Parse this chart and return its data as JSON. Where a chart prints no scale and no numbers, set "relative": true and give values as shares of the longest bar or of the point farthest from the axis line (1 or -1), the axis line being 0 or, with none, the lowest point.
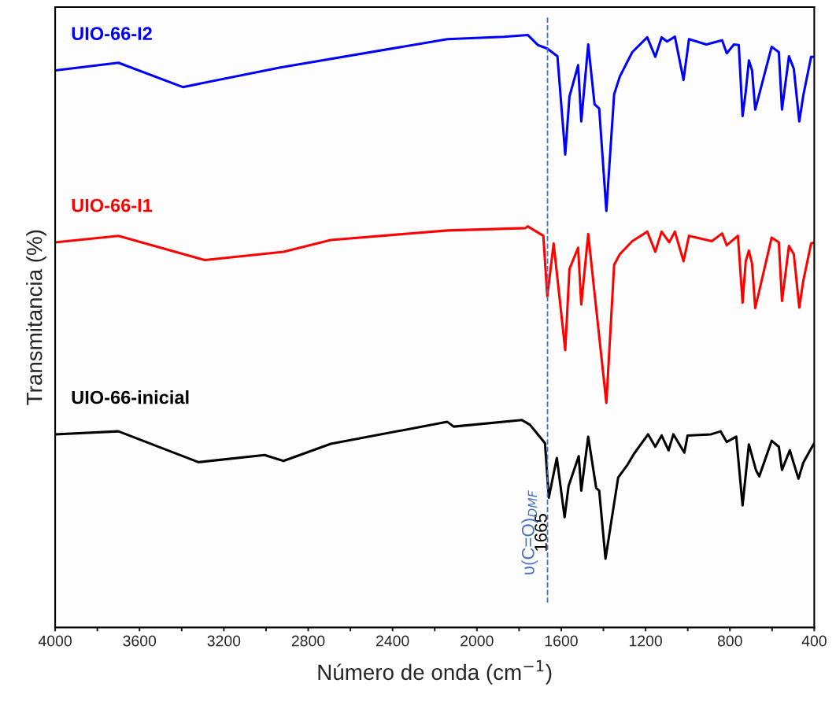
{
  "chart_data": {
    "type": "line",
    "relative": true,
    "xlabel": "Número de onda (cm$^{−1}$)",
    "ylabel": "Transmitancia (%)",
    "xlim": [
      4000,
      400
    ],
    "xticks": [
      4000,
      {
        "value": 3800,
        "label": null
      },
      3600,
      {
        "value": 3400,
        "label": null
      },
      3200,
      {
        "value": 3000,
        "label": null
      },
      2800,
      {
        "value": 2600,
        "label": null
      },
      2400,
      {
        "value": 2200,
        "label": null
      },
      2000,
      {
        "value": 1800,
        "label": null
      },
      1600,
      {
        "value": 1400,
        "label": null
      },
      1200,
      {
        "value": 1000,
        "label": null
      },
      800,
      {
        "value": 600,
        "label": null
      },
      400
    ],
    "legend": false,
    "grid": false,
    "line_style": "solid",
    "marker": "none",
    "ref_lines": [
      {
        "axis": "x",
        "value": 1665,
        "label": "1665",
        "color": "#4472c4",
        "line_style": "dashed"
      }
    ],
    "annotations": [
      "υ(C=O)$_{DMF}$"
    ],
    "series": [
      {
        "name": "UIO-66-I2",
        "color": "#0000ff",
        "x": [
          4000,
          3700,
          3395,
          2932,
          2140,
          1871,
          1759,
          1711,
          1666,
          1618,
          1581,
          1561,
          1520,
          1505,
          1472,
          1442,
          1420,
          1386,
          1349,
          1322,
          1263,
          1192,
          1154,
          1124,
          1098,
          1061,
          1020,
          994,
          912,
          837,
          815,
          781,
          758,
          740,
          725,
          710,
          695,
          680,
          602,
          568,
          553,
          520,
          497,
          471,
          452,
          415,
          400
        ],
        "values": [
          0.94,
          0.953,
          0.912,
          0.945,
          0.993,
          0.997,
          1.0,
          0.983,
          0.977,
          0.964,
          0.798,
          0.896,
          0.949,
          0.854,
          0.984,
          0.883,
          0.876,
          0.703,
          0.9,
          0.93,
          0.971,
          0.996,
          0.963,
          0.996,
          0.989,
          0.997,
          0.924,
          0.993,
          0.984,
          0.991,
          0.969,
          0.984,
          0.983,
          0.863,
          0.904,
          0.957,
          0.94,
          0.874,
          0.98,
          0.971,
          0.874,
          0.964,
          0.943,
          0.854,
          0.898,
          0.963,
          0.963
        ]
      },
      {
        "name": "UIO-66-I1",
        "color": "#ff0000",
        "x": [
          4000,
          3700,
          3290,
          2917,
          2693,
          2140,
          1770,
          1759,
          1685,
          1666,
          1636,
          1581,
          1561,
          1520,
          1505,
          1472,
          1442,
          1386,
          1349,
          1322,
          1263,
          1192,
          1154,
          1124,
          1088,
          1061,
          1020,
          994,
          886,
          837,
          815,
          762,
          740,
          725,
          710,
          695,
          680,
          602,
          568,
          553,
          520,
          497,
          471,
          452,
          415,
          400
        ],
        "values": [
          0.65,
          0.661,
          0.62,
          0.634,
          0.654,
          0.67,
          0.674,
          0.677,
          0.661,
          0.559,
          0.648,
          0.468,
          0.605,
          0.641,
          0.545,
          0.664,
          0.564,
          0.379,
          0.612,
          0.63,
          0.652,
          0.668,
          0.634,
          0.668,
          0.65,
          0.668,
          0.618,
          0.661,
          0.652,
          0.665,
          0.645,
          0.661,
          0.548,
          0.618,
          0.636,
          0.614,
          0.539,
          0.658,
          0.65,
          0.551,
          0.644,
          0.63,
          0.54,
          0.585,
          0.648,
          0.65
        ]
      },
      {
        "name": "UIO-66-inicial",
        "color": "#000000",
        "x": [
          4000,
          3700,
          3320,
          3007,
          2917,
          2693,
          2140,
          2110,
          1786,
          1748,
          1711,
          1677,
          1659,
          1621,
          1584,
          1565,
          1517,
          1505,
          1472,
          1434,
          1420,
          1390,
          1330,
          1285,
          1255,
          1188,
          1154,
          1124,
          1091,
          1068,
          1016,
          1001,
          889,
          844,
          815,
          770,
          740,
          710,
          676,
          661,
          602,
          568,
          553,
          516,
          475,
          452,
          415,
          400
        ],
        "values": [
          0.326,
          0.331,
          0.279,
          0.291,
          0.281,
          0.31,
          0.347,
          0.339,
          0.35,
          0.342,
          0.326,
          0.311,
          0.219,
          0.286,
          0.186,
          0.239,
          0.289,
          0.231,
          0.322,
          0.235,
          0.231,
          0.116,
          0.253,
          0.275,
          0.293,
          0.326,
          0.305,
          0.324,
          0.299,
          0.326,
          0.295,
          0.324,
          0.326,
          0.331,
          0.313,
          0.322,
          0.206,
          0.309,
          0.265,
          0.255,
          0.315,
          0.305,
          0.266,
          0.299,
          0.251,
          0.278,
          0.302,
          0.311
        ]
      }
    ]
  }
}
